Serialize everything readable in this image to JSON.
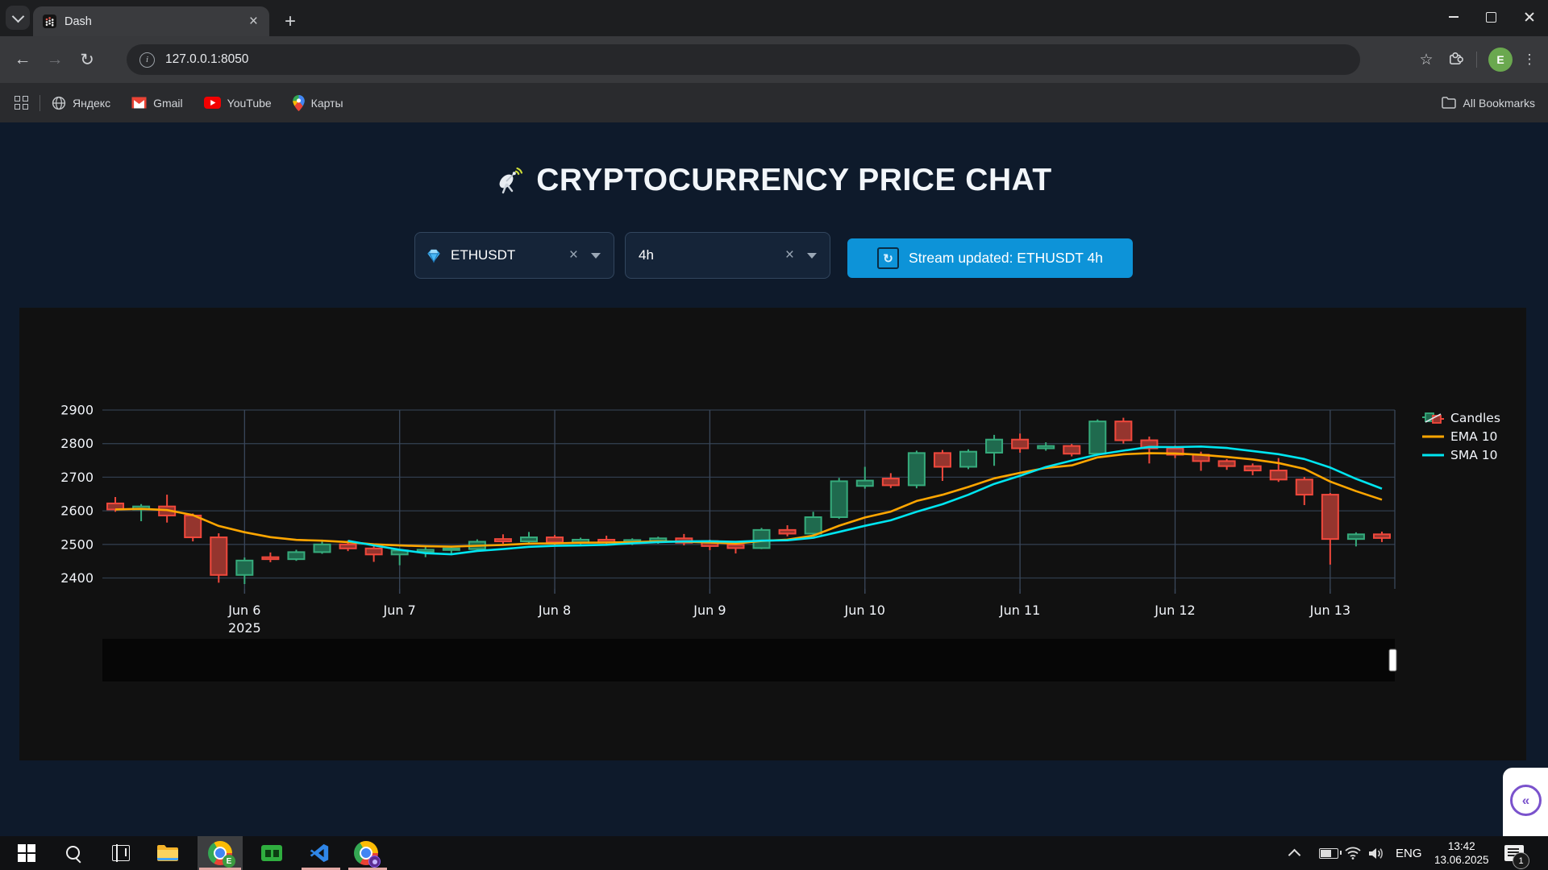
{
  "icons": {
    "back": "←",
    "forward": "→",
    "reload": "↻",
    "star": "☆",
    "kebab": "⋮",
    "tab_close": "×",
    "new_tab": "+",
    "clear": "×",
    "info": "i",
    "collapse": "«",
    "refresh": "↻"
  },
  "browser": {
    "tab": {
      "title": "Dash"
    },
    "url": "127.0.0.1:8050",
    "bookmarks": [
      {
        "label": "Яндекс"
      },
      {
        "label": "Gmail"
      },
      {
        "label": "YouTube"
      },
      {
        "label": "Карты"
      }
    ],
    "all_bookmarks_label": "All Bookmarks",
    "profile_initial": "E"
  },
  "app": {
    "title": "CRYPTOCURRENCY PRICE CHAT",
    "symbol_dropdown": {
      "value": "ETHUSDT"
    },
    "interval_dropdown": {
      "value": "4h"
    },
    "stream_button_label": "Stream updated: ETHUSDT 4h"
  },
  "chart_data": {
    "type": "candlestick",
    "symbol": "ETHUSDT",
    "interval": "4h",
    "start_time": "2025-06-05 04:00",
    "step_hours": 4,
    "legend": [
      "Candles",
      "EMA 10",
      "SMA 10"
    ],
    "yticks": [
      2400,
      2500,
      2600,
      2700,
      2800,
      2900
    ],
    "xticks": [
      {
        "index": 5,
        "label": "Jun 6",
        "sublabel": "2025"
      },
      {
        "index": 11,
        "label": "Jun 7"
      },
      {
        "index": 17,
        "label": "Jun 8"
      },
      {
        "index": 23,
        "label": "Jun 9"
      },
      {
        "index": 29,
        "label": "Jun 10"
      },
      {
        "index": 35,
        "label": "Jun 11"
      },
      {
        "index": 41,
        "label": "Jun 12"
      },
      {
        "index": 47,
        "label": "Jun 13"
      }
    ],
    "candles": [
      [
        2622,
        2641,
        2597,
        2604
      ],
      [
        2604,
        2620,
        2569,
        2613
      ],
      [
        2613,
        2648,
        2565,
        2586
      ],
      [
        2586,
        2592,
        2509,
        2521
      ],
      [
        2521,
        2533,
        2386,
        2409
      ],
      [
        2409,
        2461,
        2382,
        2452
      ],
      [
        2462,
        2476,
        2447,
        2456
      ],
      [
        2456,
        2484,
        2451,
        2477
      ],
      [
        2477,
        2514,
        2472,
        2500
      ],
      [
        2500,
        2512,
        2480,
        2488
      ],
      [
        2488,
        2499,
        2448,
        2470
      ],
      [
        2470,
        2486,
        2438,
        2482
      ],
      [
        2478,
        2492,
        2462,
        2484
      ],
      [
        2484,
        2494,
        2468,
        2488
      ],
      [
        2486,
        2515,
        2480,
        2508
      ],
      [
        2516,
        2530,
        2502,
        2509
      ],
      [
        2509,
        2537,
        2504,
        2521
      ],
      [
        2521,
        2528,
        2497,
        2506
      ],
      [
        2506,
        2520,
        2500,
        2514
      ],
      [
        2514,
        2526,
        2496,
        2507
      ],
      [
        2507,
        2518,
        2498,
        2513
      ],
      [
        2510,
        2523,
        2502,
        2518
      ],
      [
        2518,
        2531,
        2497,
        2505
      ],
      [
        2510,
        2514,
        2483,
        2495
      ],
      [
        2499,
        2504,
        2473,
        2489
      ],
      [
        2489,
        2549,
        2486,
        2543
      ],
      [
        2543,
        2557,
        2524,
        2532
      ],
      [
        2532,
        2597,
        2528,
        2581
      ],
      [
        2581,
        2698,
        2576,
        2688
      ],
      [
        2674,
        2731,
        2666,
        2690
      ],
      [
        2696,
        2712,
        2668,
        2676
      ],
      [
        2676,
        2779,
        2667,
        2772
      ],
      [
        2772,
        2781,
        2689,
        2731
      ],
      [
        2731,
        2783,
        2724,
        2776
      ],
      [
        2773,
        2826,
        2734,
        2812
      ],
      [
        2812,
        2830,
        2773,
        2786
      ],
      [
        2786,
        2804,
        2779,
        2793
      ],
      [
        2793,
        2799,
        2762,
        2770
      ],
      [
        2770,
        2872,
        2765,
        2866
      ],
      [
        2866,
        2877,
        2800,
        2810
      ],
      [
        2810,
        2821,
        2741,
        2786
      ],
      [
        2786,
        2794,
        2757,
        2767
      ],
      [
        2767,
        2776,
        2719,
        2748
      ],
      [
        2748,
        2754,
        2722,
        2733
      ],
      [
        2733,
        2741,
        2706,
        2720
      ],
      [
        2720,
        2757,
        2686,
        2693
      ],
      [
        2693,
        2701,
        2617,
        2648
      ],
      [
        2648,
        2653,
        2440,
        2516
      ],
      [
        2516,
        2536,
        2494,
        2530
      ],
      [
        2530,
        2538,
        2507,
        2519
      ]
    ],
    "overlays": [
      {
        "name": "EMA 10",
        "type": "ema",
        "period": 10,
        "color": "#ffa600"
      },
      {
        "name": "SMA 10",
        "type": "sma",
        "period": 10,
        "color": "#00e5f0"
      }
    ],
    "colors": {
      "up_line": "#36ab7c",
      "up_fill": "#1f6a4e",
      "down_line": "#f0483c",
      "down_fill": "#95352e"
    },
    "layout_colors": {
      "bg": "#111111",
      "grid_x": "#3a475a",
      "grid_y": "#303c4c",
      "font": "#f2f5fa",
      "slider_bg": "#060606"
    }
  },
  "taskbar": {
    "language": "ENG",
    "time": "13:42",
    "date": "13.06.2025",
    "notification_count": "1"
  }
}
